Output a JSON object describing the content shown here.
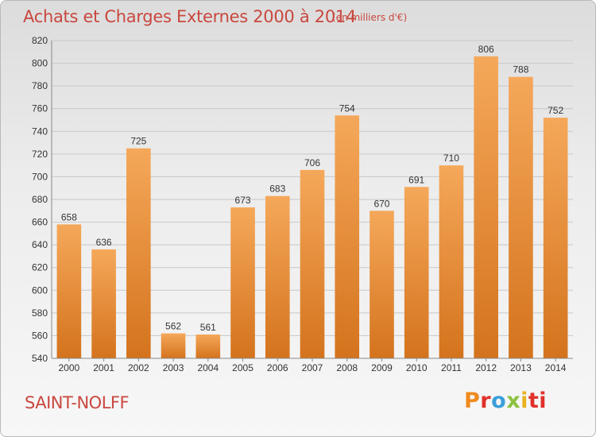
{
  "header": {
    "title": "Achats et Charges Externes 2000 à 2014",
    "subtitle": "(en milliers d'€)"
  },
  "footer": {
    "commune": "SAINT-NOLFF",
    "logo_letters": [
      "P",
      "r",
      "o",
      "x",
      "i",
      "ti"
    ]
  },
  "colors": {
    "title": "#c9473e",
    "bar_top": "#f5a85a",
    "bar_bottom": "#d4731d",
    "grid": "#c8c8c8"
  },
  "chart_data": {
    "type": "bar",
    "title": "Achats et Charges Externes 2000 à 2014",
    "subtitle": "(en milliers d'€)",
    "categories": [
      "2000",
      "2001",
      "2002",
      "2003",
      "2004",
      "2005",
      "2006",
      "2007",
      "2008",
      "2009",
      "2010",
      "2011",
      "2012",
      "2013",
      "2014"
    ],
    "values": [
      658,
      636,
      725,
      562,
      561,
      673,
      683,
      706,
      754,
      670,
      691,
      710,
      806,
      788,
      752
    ],
    "ylim": [
      540,
      820
    ],
    "yticks": [
      540,
      560,
      580,
      600,
      620,
      640,
      660,
      680,
      700,
      720,
      740,
      760,
      780,
      800,
      820
    ],
    "xlabel": "",
    "ylabel": "",
    "grid": true,
    "data_labels": true
  }
}
